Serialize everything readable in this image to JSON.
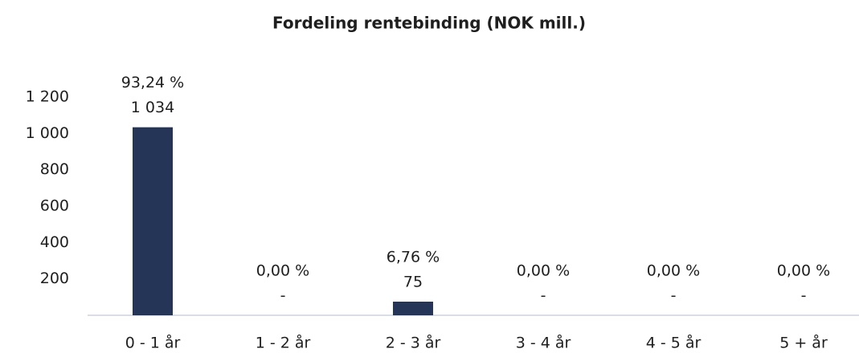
{
  "chart_data": {
    "type": "bar",
    "title": "Fordeling rentebinding (NOK mill.)",
    "categories": [
      "0 - 1 år",
      "1 - 2 år",
      "2 - 3 år",
      "3 - 4 år",
      "4 - 5 år",
      "5 + år"
    ],
    "values": [
      1034,
      0,
      75,
      0,
      0,
      0
    ],
    "value_labels": [
      "1 034",
      "-",
      "75",
      "-",
      "-",
      "-"
    ],
    "percent_labels": [
      "93,24 %",
      "0,00 %",
      "6,76 %",
      "0,00 %",
      "0,00 %",
      "0,00 %"
    ],
    "color": "#253558",
    "ylim": [
      0,
      1200
    ],
    "yticks": [
      200,
      400,
      600,
      800,
      {
        "value": 1000,
        "label": "1 000"
      },
      {
        "value": 1200,
        "label": "1 200"
      }
    ],
    "grid": false
  }
}
